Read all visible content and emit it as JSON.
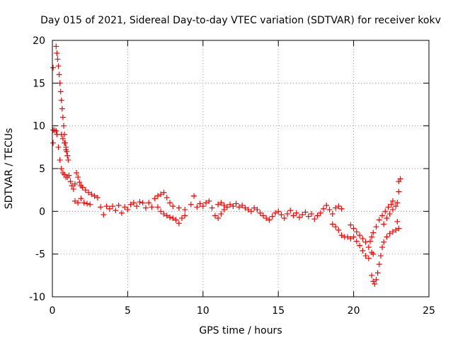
{
  "chart_data": {
    "type": "scatter",
    "title": "Day 015 of 2021, Sidereal Day-to-day VTEC variation (SDTVAR) for receiver kokv",
    "xlabel": "GPS time / hours",
    "ylabel": "SDTVAR / TECUs",
    "xlim": [
      0,
      25
    ],
    "ylim": [
      -10,
      20
    ],
    "xticks": [
      0,
      5,
      10,
      15,
      20,
      25
    ],
    "yticks": [
      -10,
      -5,
      0,
      5,
      10,
      15,
      20
    ],
    "grid": true,
    "marker": "+",
    "series": [
      {
        "name": "SDTVAR",
        "color": "#ff0000",
        "points": [
          [
            0.05,
            16.8
          ],
          [
            0.05,
            9.5
          ],
          [
            0.05,
            8.0
          ],
          [
            0.15,
            9.5
          ],
          [
            0.25,
            9.4
          ],
          [
            0.25,
            19.3
          ],
          [
            0.3,
            18.5
          ],
          [
            0.35,
            17.8
          ],
          [
            0.4,
            17.0
          ],
          [
            0.45,
            16.0
          ],
          [
            0.5,
            15.0
          ],
          [
            0.55,
            14.0
          ],
          [
            0.6,
            13.0
          ],
          [
            0.65,
            12.0
          ],
          [
            0.7,
            11.0
          ],
          [
            0.75,
            10.0
          ],
          [
            0.8,
            9.0
          ],
          [
            0.85,
            8.0
          ],
          [
            0.9,
            7.5
          ],
          [
            0.95,
            7.0
          ],
          [
            1.0,
            6.5
          ],
          [
            1.05,
            6.0
          ],
          [
            0.3,
            9.0
          ],
          [
            0.4,
            7.5
          ],
          [
            0.5,
            6.0
          ],
          [
            0.6,
            5.0
          ],
          [
            0.7,
            4.5
          ],
          [
            0.8,
            4.3
          ],
          [
            0.9,
            4.0
          ],
          [
            1.0,
            4.0
          ],
          [
            0.6,
            9.0
          ],
          [
            0.7,
            8.5
          ],
          [
            0.8,
            8.0
          ],
          [
            0.9,
            7.2
          ],
          [
            1.0,
            6.5
          ],
          [
            1.1,
            4.2
          ],
          [
            1.2,
            3.5
          ],
          [
            1.3,
            3.0
          ],
          [
            1.4,
            2.6
          ],
          [
            1.5,
            3.2
          ],
          [
            1.6,
            4.5
          ],
          [
            1.7,
            4.0
          ],
          [
            1.8,
            3.4
          ],
          [
            1.9,
            3.0
          ],
          [
            2.0,
            2.8
          ],
          [
            2.2,
            2.5
          ],
          [
            2.4,
            2.2
          ],
          [
            2.6,
            2.0
          ],
          [
            2.8,
            1.8
          ],
          [
            3.0,
            1.6
          ],
          [
            1.5,
            1.2
          ],
          [
            1.7,
            1.0
          ],
          [
            1.9,
            1.5
          ],
          [
            2.1,
            1.0
          ],
          [
            2.3,
            0.9
          ],
          [
            2.5,
            0.8
          ],
          [
            3.2,
            0.5
          ],
          [
            3.4,
            -0.4
          ],
          [
            3.6,
            0.6
          ],
          [
            3.8,
            0.3
          ],
          [
            4.0,
            0.6
          ],
          [
            4.2,
            0.1
          ],
          [
            4.4,
            0.7
          ],
          [
            4.6,
            -0.2
          ],
          [
            4.8,
            0.5
          ],
          [
            5.0,
            0.2
          ],
          [
            5.2,
            0.8
          ],
          [
            5.4,
            1.0
          ],
          [
            5.6,
            0.6
          ],
          [
            5.8,
            1.1
          ],
          [
            6.0,
            1.0
          ],
          [
            6.2,
            0.4
          ],
          [
            6.4,
            1.0
          ],
          [
            6.6,
            0.5
          ],
          [
            6.8,
            1.5
          ],
          [
            7.0,
            1.8
          ],
          [
            7.2,
            2.0
          ],
          [
            7.4,
            2.2
          ],
          [
            7.6,
            1.6
          ],
          [
            7.8,
            1.0
          ],
          [
            7.0,
            0.5
          ],
          [
            7.2,
            0.0
          ],
          [
            7.4,
            -0.3
          ],
          [
            7.6,
            -0.5
          ],
          [
            7.8,
            -0.7
          ],
          [
            8.0,
            -0.8
          ],
          [
            8.2,
            -1.0
          ],
          [
            8.4,
            -1.4
          ],
          [
            8.6,
            -0.8
          ],
          [
            8.8,
            -0.5
          ],
          [
            8.0,
            0.6
          ],
          [
            8.4,
            0.4
          ],
          [
            8.8,
            0.2
          ],
          [
            9.2,
            0.8
          ],
          [
            9.4,
            1.8
          ],
          [
            9.6,
            0.5
          ],
          [
            9.8,
            0.9
          ],
          [
            10.0,
            0.6
          ],
          [
            10.2,
            1.0
          ],
          [
            10.4,
            1.2
          ],
          [
            10.6,
            0.4
          ],
          [
            10.8,
            -0.5
          ],
          [
            11.0,
            -0.8
          ],
          [
            11.2,
            -0.3
          ],
          [
            11.4,
            0.2
          ],
          [
            11.0,
            0.8
          ],
          [
            11.2,
            1.0
          ],
          [
            11.4,
            0.7
          ],
          [
            11.6,
            0.5
          ],
          [
            11.8,
            0.8
          ],
          [
            12.0,
            0.6
          ],
          [
            12.2,
            0.9
          ],
          [
            12.4,
            0.5
          ],
          [
            12.6,
            0.7
          ],
          [
            12.8,
            0.4
          ],
          [
            13.0,
            0.2
          ],
          [
            13.2,
            0.0
          ],
          [
            13.4,
            0.4
          ],
          [
            13.6,
            0.2
          ],
          [
            13.8,
            -0.2
          ],
          [
            14.0,
            -0.5
          ],
          [
            14.2,
            -0.8
          ],
          [
            14.4,
            -1.0
          ],
          [
            14.6,
            -0.6
          ],
          [
            14.8,
            -0.2
          ],
          [
            15.0,
            0.0
          ],
          [
            15.2,
            -0.4
          ],
          [
            15.4,
            -0.8
          ],
          [
            15.6,
            -0.3
          ],
          [
            15.8,
            0.1
          ],
          [
            16.0,
            -0.5
          ],
          [
            16.2,
            -0.2
          ],
          [
            16.4,
            -0.7
          ],
          [
            16.6,
            -0.4
          ],
          [
            16.8,
            -0.1
          ],
          [
            17.0,
            -0.6
          ],
          [
            17.2,
            -0.3
          ],
          [
            17.4,
            -0.9
          ],
          [
            17.6,
            -0.5
          ],
          [
            17.8,
            -0.2
          ],
          [
            18.0,
            0.3
          ],
          [
            18.2,
            0.7
          ],
          [
            18.4,
            0.2
          ],
          [
            18.6,
            -0.3
          ],
          [
            18.8,
            0.4
          ],
          [
            19.0,
            0.6
          ],
          [
            19.2,
            0.3
          ],
          [
            18.6,
            -1.5
          ],
          [
            18.8,
            -1.8
          ],
          [
            19.0,
            -2.2
          ],
          [
            19.2,
            -2.8
          ],
          [
            19.4,
            -3.0
          ],
          [
            19.6,
            -3.0
          ],
          [
            19.8,
            -3.2
          ],
          [
            20.0,
            -3.0
          ],
          [
            20.2,
            -3.5
          ],
          [
            20.4,
            -4.0
          ],
          [
            20.6,
            -4.6
          ],
          [
            20.8,
            -5.2
          ],
          [
            21.0,
            -5.5
          ],
          [
            19.8,
            -1.6
          ],
          [
            20.0,
            -2.0
          ],
          [
            20.2,
            -2.4
          ],
          [
            20.4,
            -2.8
          ],
          [
            20.6,
            -3.2
          ],
          [
            20.8,
            -3.6
          ],
          [
            21.0,
            -4.2
          ],
          [
            21.2,
            -4.8
          ],
          [
            21.3,
            -5.0
          ],
          [
            21.1,
            -3.5
          ],
          [
            21.2,
            -3.0
          ],
          [
            21.3,
            -2.5
          ],
          [
            21.5,
            -1.8
          ],
          [
            21.7,
            -1.0
          ],
          [
            21.9,
            -0.5
          ],
          [
            22.1,
            0.0
          ],
          [
            22.3,
            0.5
          ],
          [
            22.5,
            0.8
          ],
          [
            22.6,
            1.2
          ],
          [
            21.2,
            -7.5
          ],
          [
            21.3,
            -8.2
          ],
          [
            21.4,
            -8.5
          ],
          [
            21.5,
            -8.0
          ],
          [
            21.6,
            -7.2
          ],
          [
            21.7,
            -6.2
          ],
          [
            21.8,
            -5.2
          ],
          [
            21.9,
            -4.2
          ],
          [
            22.0,
            -3.6
          ],
          [
            22.2,
            -3.0
          ],
          [
            22.4,
            -2.6
          ],
          [
            22.6,
            -2.4
          ],
          [
            22.8,
            -2.2
          ],
          [
            23.0,
            -2.0
          ],
          [
            22.0,
            -1.5
          ],
          [
            22.2,
            -0.8
          ],
          [
            22.4,
            -0.3
          ],
          [
            22.6,
            0.2
          ],
          [
            22.8,
            0.6
          ],
          [
            22.9,
            1.0
          ],
          [
            23.0,
            2.3
          ],
          [
            23.0,
            3.5
          ],
          [
            23.1,
            3.8
          ],
          [
            22.9,
            -1.2
          ]
        ]
      }
    ]
  }
}
